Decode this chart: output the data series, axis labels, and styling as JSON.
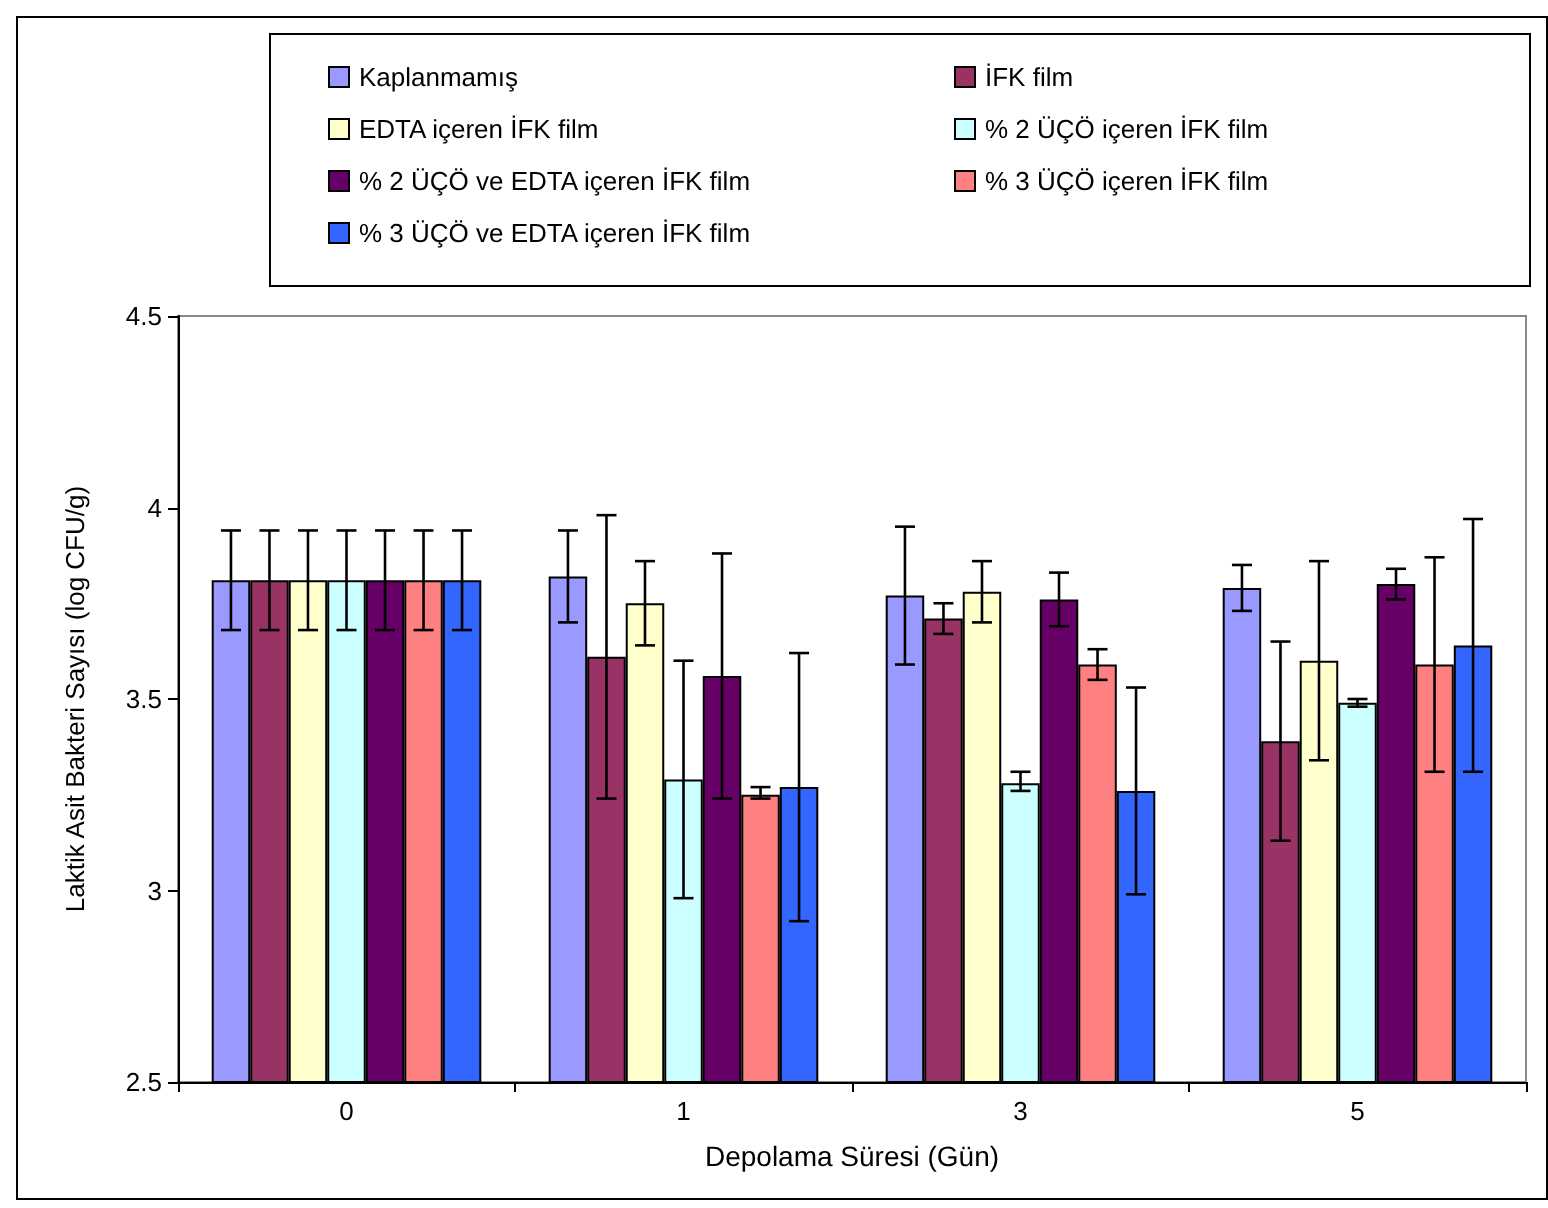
{
  "chart_data": {
    "type": "bar",
    "xlabel": "Depolama Süresi (Gün)",
    "ylabel": "Laktik Asit Bakteri Sayısı (log CFU/g)",
    "categories": [
      "0",
      "1",
      "3",
      "5"
    ],
    "ylim": [
      2.5,
      4.5
    ],
    "yticks": [
      2.5,
      3,
      3.5,
      4,
      4.5
    ],
    "grid": false,
    "legend": "top",
    "series": [
      {
        "name": "Kaplanmamış",
        "color": "#9999ff",
        "values": [
          3.81,
          3.82,
          3.77,
          3.79
        ],
        "errors": [
          [
            3.68,
            3.94
          ],
          [
            3.7,
            3.94
          ],
          [
            3.59,
            3.95
          ],
          [
            3.73,
            3.85
          ]
        ]
      },
      {
        "name": "İFK film",
        "color": "#993366",
        "values": [
          3.81,
          3.61,
          3.71,
          3.39
        ],
        "errors": [
          [
            3.68,
            3.94
          ],
          [
            3.24,
            3.98
          ],
          [
            3.67,
            3.75
          ],
          [
            3.13,
            3.65
          ]
        ]
      },
      {
        "name": "EDTA içeren İFK film",
        "color": "#ffffcc",
        "values": [
          3.81,
          3.75,
          3.78,
          3.6
        ],
        "errors": [
          [
            3.68,
            3.94
          ],
          [
            3.64,
            3.86
          ],
          [
            3.7,
            3.86
          ],
          [
            3.34,
            3.86
          ]
        ]
      },
      {
        "name": "% 2 ÜÇÖ içeren İFK film",
        "color": "#ccffff",
        "values": [
          3.81,
          3.29,
          3.28,
          3.49
        ],
        "errors": [
          [
            3.68,
            3.94
          ],
          [
            2.98,
            3.6
          ],
          [
            3.26,
            3.31
          ],
          [
            3.48,
            3.5
          ]
        ]
      },
      {
        "name": "% 2 ÜÇÖ ve EDTA içeren İFK film",
        "color": "#660066",
        "values": [
          3.81,
          3.56,
          3.76,
          3.8
        ],
        "errors": [
          [
            3.68,
            3.94
          ],
          [
            3.24,
            3.88
          ],
          [
            3.69,
            3.83
          ],
          [
            3.76,
            3.84
          ]
        ]
      },
      {
        "name": "% 3 ÜÇÖ içeren İFK film",
        "color": "#ff8080",
        "values": [
          3.81,
          3.25,
          3.59,
          3.59
        ],
        "errors": [
          [
            3.68,
            3.94
          ],
          [
            3.24,
            3.27
          ],
          [
            3.55,
            3.63
          ],
          [
            3.31,
            3.87
          ]
        ]
      },
      {
        "name": "% 3 ÜÇÖ ve EDTA içeren İFK film",
        "color": "#3366ff",
        "values": [
          3.81,
          3.27,
          3.26,
          3.64
        ],
        "errors": [
          [
            3.68,
            3.94
          ],
          [
            2.92,
            3.62
          ],
          [
            2.99,
            3.53
          ],
          [
            3.31,
            3.97
          ]
        ]
      }
    ]
  }
}
